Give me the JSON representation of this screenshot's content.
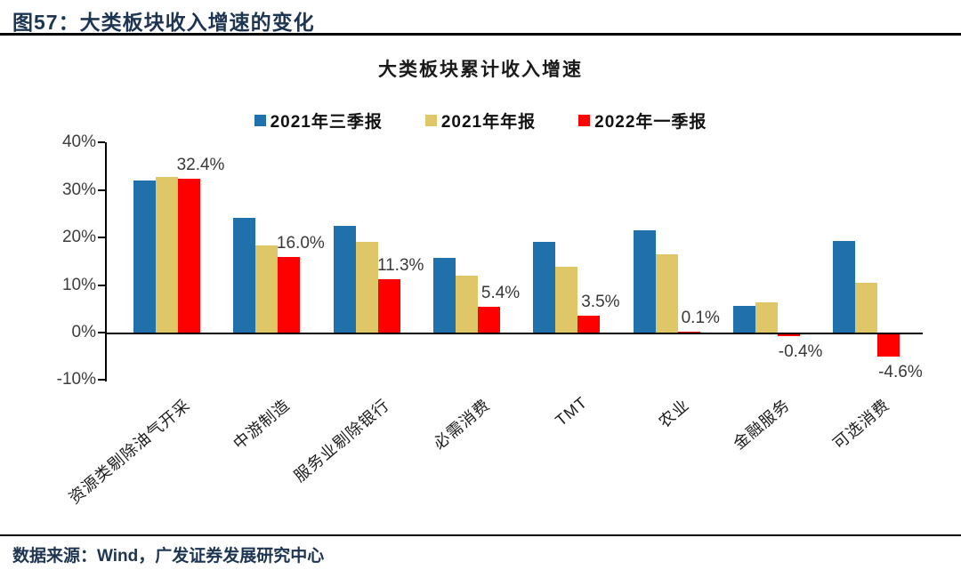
{
  "figure": {
    "header_title": "图57：大类板块收入增速的变化",
    "source_note": "数据来源：Wind，广发证券发展研究中心"
  },
  "chart_data": {
    "type": "bar",
    "title": "大类板块累计收入增速",
    "categories": [
      "资源类剔除油气开采",
      "中游制造",
      "服务业剔除银行",
      "必需消费",
      "TMT",
      "农业",
      "金融服务",
      "可选消费"
    ],
    "series": [
      {
        "name": "2021年三季报",
        "color": "#2070AB",
        "values": [
          32.0,
          24.2,
          22.4,
          15.7,
          19.1,
          21.5,
          5.7,
          19.2
        ]
      },
      {
        "name": "2021年年报",
        "color": "#DFC768",
        "values": [
          32.8,
          18.3,
          19.1,
          11.9,
          13.8,
          16.4,
          6.4,
          10.4
        ]
      },
      {
        "name": "2022年一季报",
        "color": "#FE0000",
        "values": [
          32.4,
          16.0,
          11.3,
          5.4,
          3.5,
          0.1,
          -0.4,
          -4.6
        ],
        "data_labels": [
          "32.4%",
          "16.0%",
          "11.3%",
          "5.4%",
          "3.5%",
          "0.1%",
          "-0.4%",
          "-4.6%"
        ]
      }
    ],
    "yticks": [
      "40%",
      "30%",
      "20%",
      "10%",
      "0%",
      "-10%"
    ],
    "ylim": [
      -10,
      40
    ],
    "grid": false,
    "legend_position": "top",
    "axis_color": "#000000"
  }
}
